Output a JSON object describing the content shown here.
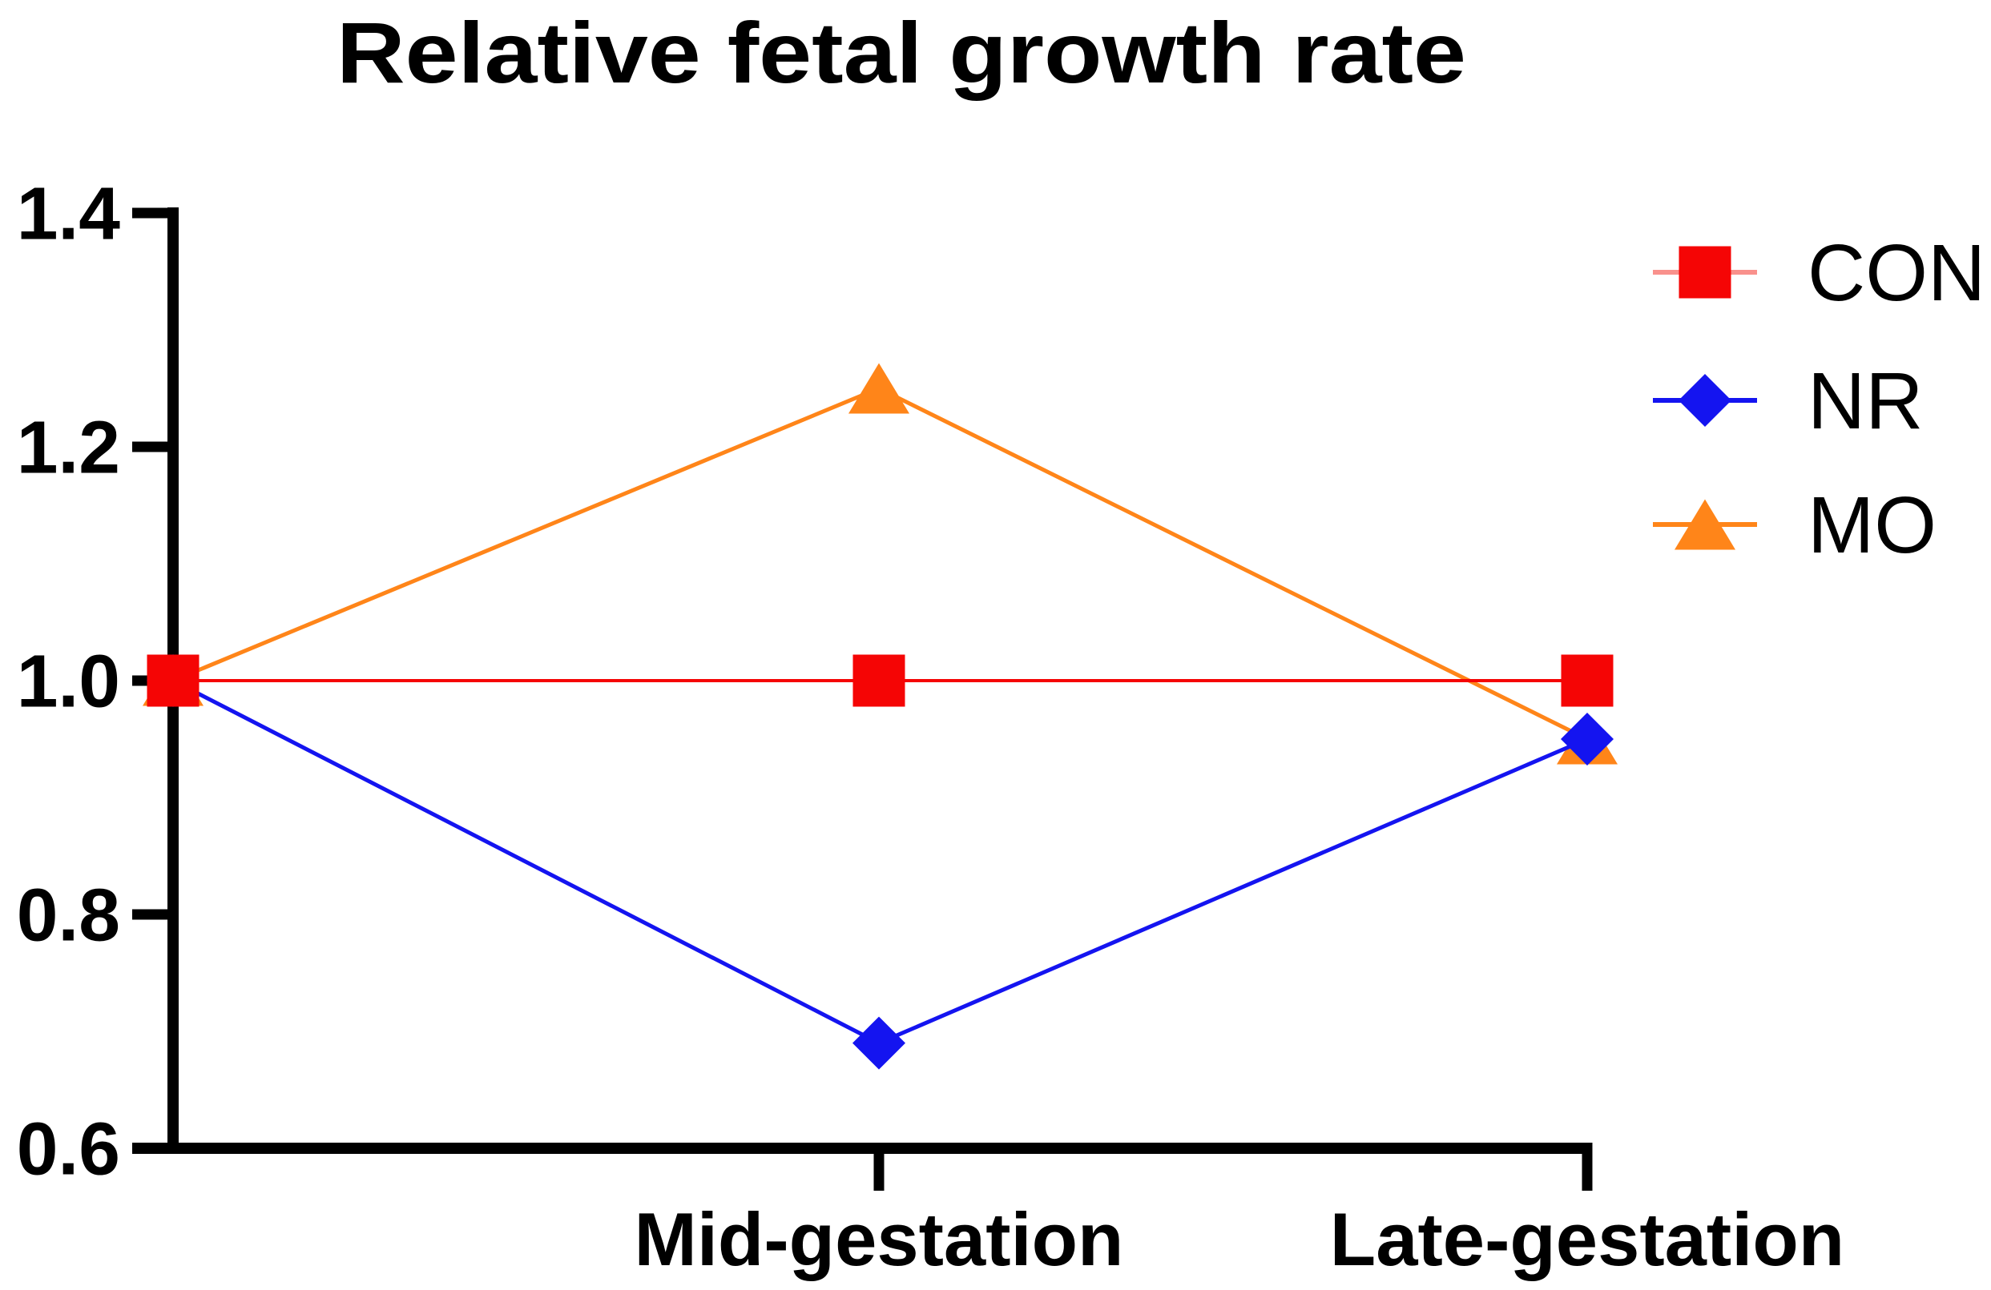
{
  "chart_data": {
    "type": "line",
    "title": "Relative fetal growth rate",
    "categories": [
      "",
      "Mid-gestation",
      "Late-gestation"
    ],
    "series": [
      {
        "name": "CON",
        "marker": "square",
        "color": "#f50505",
        "legend_line_color": "#f9918c",
        "values": [
          1.0,
          1.0,
          1.0
        ]
      },
      {
        "name": "NR",
        "marker": "diamond",
        "color": "#1414f0",
        "legend_line_color": "#1414f0",
        "values": [
          1.0,
          0.69,
          0.95
        ]
      },
      {
        "name": "MO",
        "marker": "triangle",
        "color": "#ff8519",
        "legend_line_color": "#ff8519",
        "values": [
          1.0,
          1.25,
          0.95
        ]
      }
    ],
    "ylim": [
      0.6,
      1.4
    ],
    "ytick_labels": [
      "0.6",
      "0.8",
      "1.0",
      "1.2",
      "1.4"
    ],
    "xlabel": "",
    "ylabel": "",
    "grid": false,
    "legend_position": "right",
    "axis_color": "#000000",
    "text_color": "#000000",
    "background_color": "#ffffff"
  }
}
